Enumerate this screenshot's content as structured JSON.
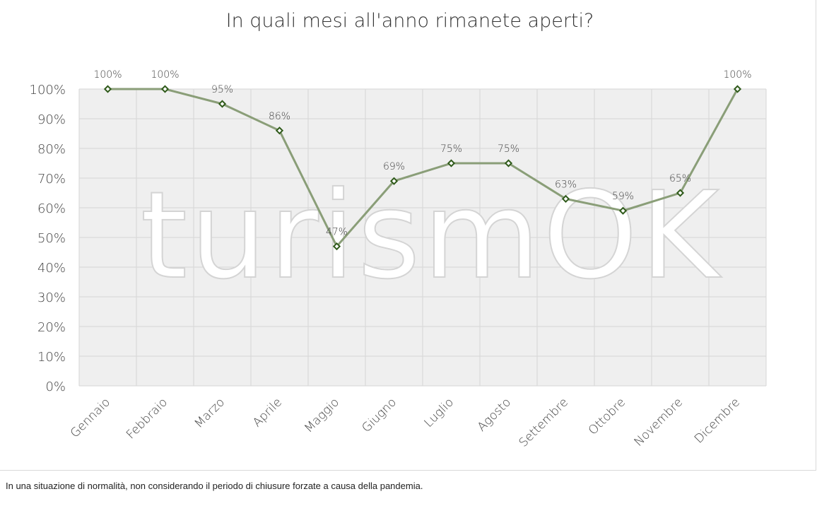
{
  "footnote": "In una situazione di normalità, non considerando il periodo di chiusure forzate a causa della pandemia.",
  "watermark": "turismOK",
  "chart_data": {
    "type": "line",
    "title": "In quali mesi all'anno rimanete aperti?",
    "categories": [
      "Gennaio",
      "Febbraio",
      "Marzo",
      "Aprile",
      "Maggio",
      "Giugno",
      "Luglio",
      "Agosto",
      "Settembre",
      "Ottobre",
      "Novembre",
      "Dicembre"
    ],
    "values": [
      100,
      100,
      95,
      86,
      47,
      69,
      75,
      75,
      63,
      59,
      65,
      100
    ],
    "data_labels": [
      "100%",
      "100%",
      "95%",
      "86%",
      "47%",
      "69%",
      "75%",
      "75%",
      "63%",
      "59%",
      "65%",
      "100%"
    ],
    "y_ticks": [
      "0%",
      "10%",
      "20%",
      "30%",
      "40%",
      "50%",
      "60%",
      "70%",
      "80%",
      "90%",
      "100%"
    ],
    "ylim": [
      0,
      100
    ],
    "grid": true,
    "line_color": "#8a9e78",
    "marker_color": "#2f5a1a"
  }
}
